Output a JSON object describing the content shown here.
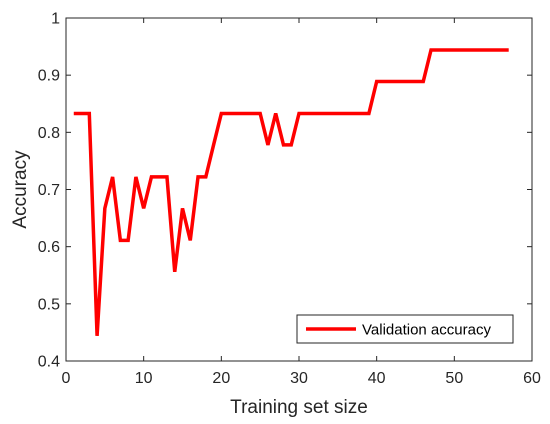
{
  "chart_data": {
    "type": "line",
    "xlabel": "Training set size",
    "ylabel": "Accuracy",
    "xlim": [
      0,
      60
    ],
    "ylim": [
      0.4,
      1
    ],
    "xticks": [
      0,
      10,
      20,
      30,
      40,
      50,
      60
    ],
    "yticks": [
      0.4,
      0.5,
      0.6,
      0.7,
      0.8,
      0.9,
      1
    ],
    "ytick_labels": [
      "0.4",
      "0.5",
      "0.6",
      "0.7",
      "0.8",
      "0.9",
      "1"
    ],
    "grid": false,
    "legend_position": "bottom-right",
    "series": [
      {
        "name": "Validation accuracy",
        "color": "#ff0000",
        "x": [
          1,
          2,
          3,
          4,
          5,
          6,
          7,
          8,
          9,
          10,
          11,
          12,
          13,
          14,
          15,
          16,
          17,
          18,
          19,
          20,
          21,
          22,
          23,
          24,
          25,
          26,
          27,
          28,
          29,
          30,
          31,
          32,
          33,
          34,
          35,
          36,
          37,
          38,
          39,
          40,
          41,
          42,
          43,
          44,
          45,
          46,
          47,
          48,
          49,
          50,
          51,
          52,
          53,
          54,
          55,
          56,
          57
        ],
        "y": [
          0.833,
          0.833,
          0.833,
          0.444,
          0.667,
          0.722,
          0.611,
          0.611,
          0.722,
          0.667,
          0.722,
          0.722,
          0.722,
          0.556,
          0.667,
          0.611,
          0.722,
          0.722,
          0.778,
          0.833,
          0.833,
          0.833,
          0.833,
          0.833,
          0.833,
          0.778,
          0.833,
          0.778,
          0.778,
          0.833,
          0.833,
          0.833,
          0.833,
          0.833,
          0.833,
          0.833,
          0.833,
          0.833,
          0.833,
          0.889,
          0.889,
          0.889,
          0.889,
          0.889,
          0.889,
          0.889,
          0.944,
          0.944,
          0.944,
          0.944,
          0.944,
          0.944,
          0.944,
          0.944,
          0.944,
          0.944,
          0.944
        ]
      }
    ]
  }
}
